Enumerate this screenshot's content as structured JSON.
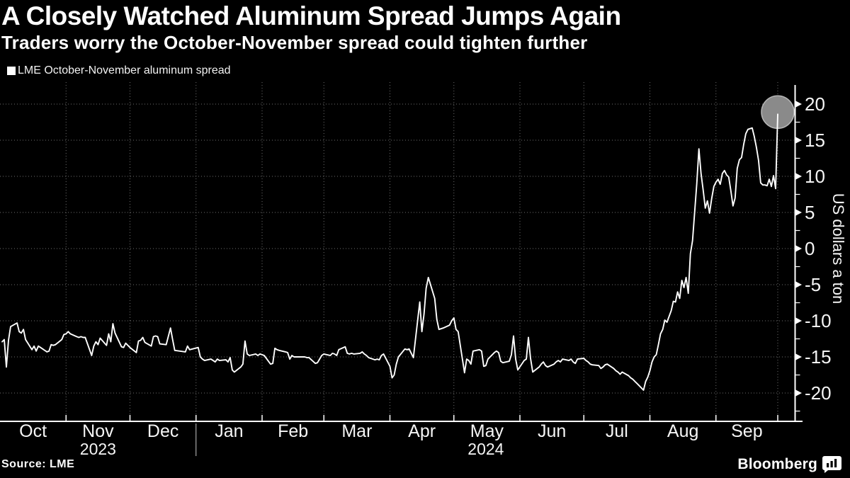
{
  "header": {
    "title": "A Closely Watched Aluminum Spread Jumps Again",
    "subtitle": "Traders worry the October-November spread could tighten further"
  },
  "legend": {
    "label": "LME October-November aluminum spread",
    "marker_color": "#ffffff"
  },
  "footer": {
    "source": "Source: LME",
    "brand": "Bloomberg"
  },
  "colors": {
    "background": "#000000",
    "line": "#ffffff",
    "grid": "#6e6e6e",
    "axis": "#ffffff",
    "tick_label": "#f5f5f5",
    "highlight_fill": "#8a8a8a",
    "highlight_stroke": "#b5b5b5",
    "year_divider": "#c8c8c8"
  },
  "chart_data": {
    "type": "line",
    "series_name": "LME October-November aluminum spread",
    "unit": "US dollars a ton",
    "x_range": [
      "2023-10-01",
      "2024-09-30"
    ],
    "ylim": [
      -24,
      22.5
    ],
    "y_ticks": [
      20,
      15,
      10,
      5,
      0,
      -5,
      -10,
      -15,
      -20
    ],
    "y_minor_step": 2.5,
    "grid": true,
    "legend_position": "top-left",
    "highlight_last_point": true,
    "last_value": 18.6,
    "x_axis": {
      "months": [
        "Oct",
        "Nov",
        "Dec",
        "Jan",
        "Feb",
        "Mar",
        "Apr",
        "May",
        "Jun",
        "Jul",
        "Aug",
        "Sep"
      ],
      "month_boundaries": [
        "2023-10-01",
        "2023-11-01",
        "2023-12-01",
        "2024-01-01",
        "2024-02-01",
        "2024-03-01",
        "2024-04-01",
        "2024-05-01",
        "2024-06-01",
        "2024-07-01",
        "2024-08-01",
        "2024-09-01",
        "2024-09-30"
      ],
      "years": [
        {
          "label": "2023",
          "anchor": "2023-11-16"
        },
        {
          "label": "2024",
          "anchor": "2024-05-16"
        }
      ],
      "year_divider_at": "2024-01-01"
    },
    "points": [
      [
        "2023-10-02",
        -12.9
      ],
      [
        "2023-10-03",
        -12.6
      ],
      [
        "2023-10-04",
        -16.4
      ],
      [
        "2023-10-05",
        -12.7
      ],
      [
        "2023-10-06",
        -10.8
      ],
      [
        "2023-10-09",
        -10.3
      ],
      [
        "2023-10-10",
        -11.5
      ],
      [
        "2023-10-11",
        -11.7
      ],
      [
        "2023-10-12",
        -11.2
      ],
      [
        "2023-10-13",
        -12.6
      ],
      [
        "2023-10-16",
        -14.0
      ],
      [
        "2023-10-17",
        -13.5
      ],
      [
        "2023-10-18",
        -14.2
      ],
      [
        "2023-10-19",
        -13.5
      ],
      [
        "2023-10-20",
        -13.7
      ],
      [
        "2023-10-23",
        -14.3
      ],
      [
        "2023-10-24",
        -14.2
      ],
      [
        "2023-10-25",
        -13.3
      ],
      [
        "2023-10-26",
        -13.4
      ],
      [
        "2023-10-27",
        -13.3
      ],
      [
        "2023-10-30",
        -12.6
      ],
      [
        "2023-10-31",
        -11.9
      ],
      [
        "2023-11-01",
        -11.8
      ],
      [
        "2023-11-02",
        -11.5
      ],
      [
        "2023-11-03",
        -11.8
      ],
      [
        "2023-11-06",
        -12.2
      ],
      [
        "2023-11-07",
        -12.3
      ],
      [
        "2023-11-08",
        -12.2
      ],
      [
        "2023-11-09",
        -12.3
      ],
      [
        "2023-11-10",
        -12.3
      ],
      [
        "2023-11-13",
        -14.8
      ],
      [
        "2023-11-14",
        -13.5
      ],
      [
        "2023-11-15",
        -12.9
      ],
      [
        "2023-11-16",
        -13.3
      ],
      [
        "2023-11-17",
        -12.4
      ],
      [
        "2023-11-20",
        -13.4
      ],
      [
        "2023-11-21",
        -11.8
      ],
      [
        "2023-11-22",
        -12.9
      ],
      [
        "2023-11-23",
        -10.4
      ],
      [
        "2023-11-24",
        -11.7
      ],
      [
        "2023-11-27",
        -13.6
      ],
      [
        "2023-11-28",
        -13.7
      ],
      [
        "2023-11-29",
        -13.1
      ],
      [
        "2023-11-30",
        -13.4
      ],
      [
        "2023-12-01",
        -13.7
      ],
      [
        "2023-12-04",
        -14.4
      ],
      [
        "2023-12-05",
        -12.8
      ],
      [
        "2023-12-06",
        -12.7
      ],
      [
        "2023-12-07",
        -12.3
      ],
      [
        "2023-12-08",
        -13.0
      ],
      [
        "2023-12-11",
        -13.5
      ],
      [
        "2023-12-12",
        -12.2
      ],
      [
        "2023-12-13",
        -12.1
      ],
      [
        "2023-12-14",
        -12.2
      ],
      [
        "2023-12-15",
        -13.2
      ],
      [
        "2023-12-18",
        -13.3
      ],
      [
        "2023-12-20",
        -11.0
      ],
      [
        "2023-12-21",
        -12.6
      ],
      [
        "2023-12-22",
        -14.1
      ],
      [
        "2023-12-27",
        -14.3
      ],
      [
        "2023-12-28",
        -13.5
      ],
      [
        "2023-12-29",
        -14.0
      ],
      [
        "2024-01-02",
        -13.7
      ],
      [
        "2024-01-03",
        -15.0
      ],
      [
        "2024-01-04",
        -15.3
      ],
      [
        "2024-01-05",
        -15.5
      ],
      [
        "2024-01-08",
        -15.3
      ],
      [
        "2024-01-09",
        -15.5
      ],
      [
        "2024-01-10",
        -15.7
      ],
      [
        "2024-01-11",
        -15.3
      ],
      [
        "2024-01-12",
        -15.5
      ],
      [
        "2024-01-15",
        -15.4
      ],
      [
        "2024-01-16",
        -15.7
      ],
      [
        "2024-01-17",
        -15.1
      ],
      [
        "2024-01-18",
        -16.8
      ],
      [
        "2024-01-19",
        -17.1
      ],
      [
        "2024-01-22",
        -16.4
      ],
      [
        "2024-01-23",
        -16.0
      ],
      [
        "2024-01-24",
        -12.8
      ],
      [
        "2024-01-25",
        -14.6
      ],
      [
        "2024-01-26",
        -14.8
      ],
      [
        "2024-01-29",
        -14.6
      ],
      [
        "2024-01-30",
        -14.8
      ],
      [
        "2024-01-31",
        -14.6
      ],
      [
        "2024-02-01",
        -14.7
      ],
      [
        "2024-02-02",
        -14.8
      ],
      [
        "2024-02-05",
        -16.0
      ],
      [
        "2024-02-06",
        -15.9
      ],
      [
        "2024-02-07",
        -13.8
      ],
      [
        "2024-02-08",
        -14.0
      ],
      [
        "2024-02-09",
        -14.1
      ],
      [
        "2024-02-12",
        -14.3
      ],
      [
        "2024-02-13",
        -14.4
      ],
      [
        "2024-02-14",
        -15.3
      ],
      [
        "2024-02-15",
        -14.8
      ],
      [
        "2024-02-16",
        -15.0
      ],
      [
        "2024-02-19",
        -15.0
      ],
      [
        "2024-02-20",
        -15.0
      ],
      [
        "2024-02-21",
        -15.0
      ],
      [
        "2024-02-22",
        -15.1
      ],
      [
        "2024-02-23",
        -15.1
      ],
      [
        "2024-02-26",
        -15.9
      ],
      [
        "2024-02-27",
        -15.8
      ],
      [
        "2024-02-28",
        -15.3
      ],
      [
        "2024-02-29",
        -14.8
      ],
      [
        "2024-03-01",
        -14.6
      ],
      [
        "2024-03-04",
        -14.8
      ],
      [
        "2024-03-05",
        -14.5
      ],
      [
        "2024-03-06",
        -14.6
      ],
      [
        "2024-03-07",
        -14.8
      ],
      [
        "2024-03-08",
        -14.0
      ],
      [
        "2024-03-11",
        -13.6
      ],
      [
        "2024-03-12",
        -14.5
      ],
      [
        "2024-03-13",
        -14.6
      ],
      [
        "2024-03-14",
        -14.5
      ],
      [
        "2024-03-15",
        -14.6
      ],
      [
        "2024-03-18",
        -14.5
      ],
      [
        "2024-03-19",
        -14.3
      ],
      [
        "2024-03-20",
        -14.6
      ],
      [
        "2024-03-21",
        -14.8
      ],
      [
        "2024-03-22",
        -15.1
      ],
      [
        "2024-03-25",
        -15.4
      ],
      [
        "2024-03-26",
        -15.3
      ],
      [
        "2024-03-27",
        -15.4
      ],
      [
        "2024-03-28",
        -14.8
      ],
      [
        "2024-03-29",
        -14.6
      ],
      [
        "2024-04-01",
        -16.3
      ],
      [
        "2024-04-02",
        -17.9
      ],
      [
        "2024-04-03",
        -17.5
      ],
      [
        "2024-04-04",
        -16.0
      ],
      [
        "2024-04-05",
        -15.0
      ],
      [
        "2024-04-08",
        -13.9
      ],
      [
        "2024-04-09",
        -14.0
      ],
      [
        "2024-04-10",
        -13.9
      ],
      [
        "2024-04-11",
        -14.5
      ],
      [
        "2024-04-12",
        -15.1
      ],
      [
        "2024-04-15",
        -7.4
      ],
      [
        "2024-04-16",
        -11.5
      ],
      [
        "2024-04-17",
        -9.1
      ],
      [
        "2024-04-18",
        -5.5
      ],
      [
        "2024-04-19",
        -4.0
      ],
      [
        "2024-04-22",
        -6.9
      ],
      [
        "2024-04-23",
        -9.8
      ],
      [
        "2024-04-24",
        -11.2
      ],
      [
        "2024-04-25",
        -11.1
      ],
      [
        "2024-04-26",
        -11.0
      ],
      [
        "2024-04-29",
        -10.6
      ],
      [
        "2024-04-30",
        -10.0
      ],
      [
        "2024-05-01",
        -9.6
      ],
      [
        "2024-05-02",
        -11.2
      ],
      [
        "2024-05-03",
        -11.5
      ],
      [
        "2024-05-06",
        -17.2
      ],
      [
        "2024-05-07",
        -15.3
      ],
      [
        "2024-05-08",
        -15.5
      ],
      [
        "2024-05-09",
        -16.0
      ],
      [
        "2024-05-10",
        -14.2
      ],
      [
        "2024-05-13",
        -14.0
      ],
      [
        "2024-05-14",
        -14.2
      ],
      [
        "2024-05-15",
        -16.3
      ],
      [
        "2024-05-16",
        -16.2
      ],
      [
        "2024-05-17",
        -15.3
      ],
      [
        "2024-05-20",
        -14.4
      ],
      [
        "2024-05-21",
        -14.2
      ],
      [
        "2024-05-22",
        -14.4
      ],
      [
        "2024-05-23",
        -15.6
      ],
      [
        "2024-05-24",
        -15.8
      ],
      [
        "2024-05-27",
        -15.6
      ],
      [
        "2024-05-28",
        -14.7
      ],
      [
        "2024-05-29",
        -12.1
      ],
      [
        "2024-05-30",
        -15.3
      ],
      [
        "2024-05-31",
        -16.8
      ],
      [
        "2024-06-03",
        -15.5
      ],
      [
        "2024-06-04",
        -15.3
      ],
      [
        "2024-06-05",
        -12.3
      ],
      [
        "2024-06-06",
        -15.2
      ],
      [
        "2024-06-07",
        -17.1
      ],
      [
        "2024-06-10",
        -16.4
      ],
      [
        "2024-06-11",
        -16.0
      ],
      [
        "2024-06-12",
        -15.7
      ],
      [
        "2024-06-13",
        -16.2
      ],
      [
        "2024-06-14",
        -16.4
      ],
      [
        "2024-06-17",
        -16.0
      ],
      [
        "2024-06-18",
        -15.7
      ],
      [
        "2024-06-19",
        -15.5
      ],
      [
        "2024-06-20",
        -15.7
      ],
      [
        "2024-06-21",
        -15.3
      ],
      [
        "2024-06-24",
        -15.5
      ],
      [
        "2024-06-25",
        -15.3
      ],
      [
        "2024-06-26",
        -15.7
      ],
      [
        "2024-06-27",
        -15.9
      ],
      [
        "2024-06-28",
        -15.3
      ],
      [
        "2024-07-01",
        -15.2
      ],
      [
        "2024-07-02",
        -15.5
      ],
      [
        "2024-07-03",
        -15.7
      ],
      [
        "2024-07-04",
        -16.0
      ],
      [
        "2024-07-05",
        -16.1
      ],
      [
        "2024-07-08",
        -16.2
      ],
      [
        "2024-07-09",
        -16.6
      ],
      [
        "2024-07-10",
        -16.4
      ],
      [
        "2024-07-11",
        -16.1
      ],
      [
        "2024-07-12",
        -16.0
      ],
      [
        "2024-07-15",
        -16.6
      ],
      [
        "2024-07-16",
        -16.9
      ],
      [
        "2024-07-17",
        -17.1
      ],
      [
        "2024-07-18",
        -17.4
      ],
      [
        "2024-07-19",
        -17.1
      ],
      [
        "2024-07-22",
        -17.6
      ],
      [
        "2024-07-23",
        -17.9
      ],
      [
        "2024-07-24",
        -18.1
      ],
      [
        "2024-07-25",
        -18.4
      ],
      [
        "2024-07-26",
        -18.7
      ],
      [
        "2024-07-29",
        -19.6
      ],
      [
        "2024-07-30",
        -18.4
      ],
      [
        "2024-07-31",
        -17.8
      ],
      [
        "2024-08-01",
        -16.9
      ],
      [
        "2024-08-02",
        -15.7
      ],
      [
        "2024-08-03",
        -15.0
      ],
      [
        "2024-08-04",
        -14.7
      ],
      [
        "2024-08-05",
        -13.3
      ],
      [
        "2024-08-06",
        -11.8
      ],
      [
        "2024-08-07",
        -11.2
      ],
      [
        "2024-08-08",
        -9.9
      ],
      [
        "2024-08-09",
        -10.2
      ],
      [
        "2024-08-11",
        -8.6
      ],
      [
        "2024-08-12",
        -7.3
      ],
      [
        "2024-08-13",
        -7.4
      ],
      [
        "2024-08-14",
        -6.0
      ],
      [
        "2024-08-15",
        -6.9
      ],
      [
        "2024-08-16",
        -4.4
      ],
      [
        "2024-08-17",
        -5.4
      ],
      [
        "2024-08-18",
        -4.0
      ],
      [
        "2024-08-19",
        -6.2
      ],
      [
        "2024-08-20",
        -0.7
      ],
      [
        "2024-08-21",
        1.1
      ],
      [
        "2024-08-23",
        9.0
      ],
      [
        "2024-08-24",
        13.8
      ],
      [
        "2024-08-25",
        10.4
      ],
      [
        "2024-08-26",
        8.1
      ],
      [
        "2024-08-27",
        5.6
      ],
      [
        "2024-08-28",
        6.6
      ],
      [
        "2024-08-29",
        4.9
      ],
      [
        "2024-08-30",
        6.9
      ],
      [
        "2024-08-31",
        8.6
      ],
      [
        "2024-09-01",
        9.2
      ],
      [
        "2024-09-02",
        9.6
      ],
      [
        "2024-09-03",
        8.9
      ],
      [
        "2024-09-04",
        10.4
      ],
      [
        "2024-09-05",
        10.8
      ],
      [
        "2024-09-06",
        10.2
      ],
      [
        "2024-09-07",
        9.9
      ],
      [
        "2024-09-08",
        8.0
      ],
      [
        "2024-09-09",
        5.9
      ],
      [
        "2024-09-10",
        7.0
      ],
      [
        "2024-09-11",
        11.1
      ],
      [
        "2024-09-12",
        12.3
      ],
      [
        "2024-09-13",
        12.6
      ],
      [
        "2024-09-14",
        14.4
      ],
      [
        "2024-09-15",
        15.9
      ],
      [
        "2024-09-16",
        16.5
      ],
      [
        "2024-09-17",
        16.6
      ],
      [
        "2024-09-18",
        16.7
      ],
      [
        "2024-09-19",
        15.5
      ],
      [
        "2024-09-20",
        14.0
      ],
      [
        "2024-09-21",
        12.2
      ],
      [
        "2024-09-22",
        9.1
      ],
      [
        "2024-09-23",
        8.8
      ],
      [
        "2024-09-24",
        8.8
      ],
      [
        "2024-09-25",
        8.7
      ],
      [
        "2024-09-26",
        9.6
      ],
      [
        "2024-09-27",
        8.6
      ],
      [
        "2024-09-28",
        10.1
      ],
      [
        "2024-09-29",
        8.3
      ],
      [
        "2024-09-30",
        18.6
      ]
    ]
  }
}
